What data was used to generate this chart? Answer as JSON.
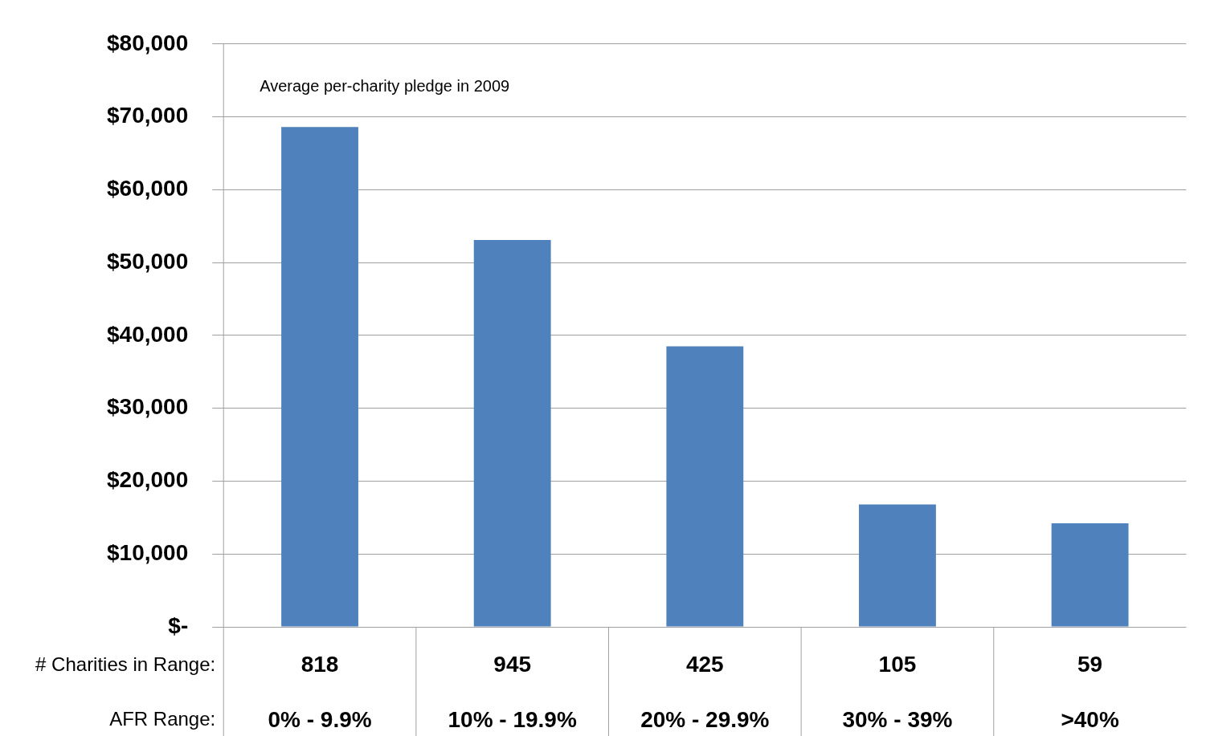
{
  "chart_data": {
    "type": "bar",
    "title": "Average per-charity pledge in 2009",
    "categories": [
      "0% - 9.9%",
      "10% - 19.9%",
      "20% - 29.9%",
      "30% - 39%",
      ">40%"
    ],
    "values": [
      68600,
      53100,
      38500,
      16800,
      14200
    ],
    "color": "#4f81bd",
    "ylim": [
      0,
      80000
    ],
    "yticks": [
      {
        "value": 0,
        "label": "$-"
      },
      {
        "value": 10000,
        "label": "$10,000"
      },
      {
        "value": 20000,
        "label": "$20,000"
      },
      {
        "value": 30000,
        "label": "$30,000"
      },
      {
        "value": 40000,
        "label": "$40,000"
      },
      {
        "value": 50000,
        "label": "$50,000"
      },
      {
        "value": 60000,
        "label": "$60,000"
      },
      {
        "value": 70000,
        "label": "$70,000"
      },
      {
        "value": 80000,
        "label": "$80,000"
      }
    ],
    "grid": "y",
    "legend": false,
    "annotations": [
      "# Charities in Range:",
      "AFR Range:",
      "818",
      "945",
      "425",
      "105",
      "59"
    ]
  }
}
